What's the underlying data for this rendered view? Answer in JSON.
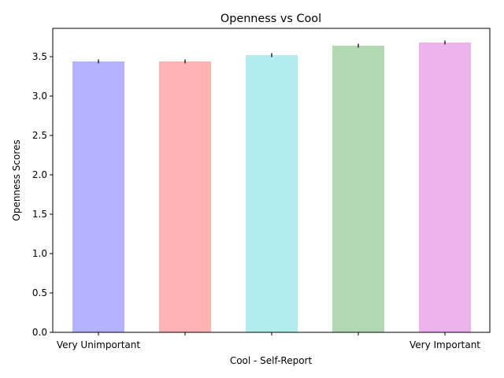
{
  "chart_data": {
    "type": "bar",
    "title": "Openness vs Cool",
    "xlabel": "Cool - Self-Report",
    "ylabel": "Openness Scores",
    "categories": [
      "Very Unimportant",
      "",
      "",
      "",
      "Very Important"
    ],
    "values": [
      3.44,
      3.44,
      3.52,
      3.64,
      3.68
    ],
    "error": [
      0.025,
      0.025,
      0.025,
      0.025,
      0.025
    ],
    "colors": [
      "#b3b3ff",
      "#ffb3b3",
      "#b3ecec",
      "#b3d9b3",
      "#ecb3ec"
    ],
    "ylim": [
      0,
      3.86
    ],
    "yticks": [
      0.0,
      0.5,
      1.0,
      1.5,
      2.0,
      2.5,
      3.0,
      3.5
    ],
    "ytick_labels": [
      "0.0",
      "0.5",
      "1.0",
      "1.5",
      "2.0",
      "2.5",
      "3.0",
      "3.5"
    ],
    "grid": false,
    "legend": "none"
  }
}
